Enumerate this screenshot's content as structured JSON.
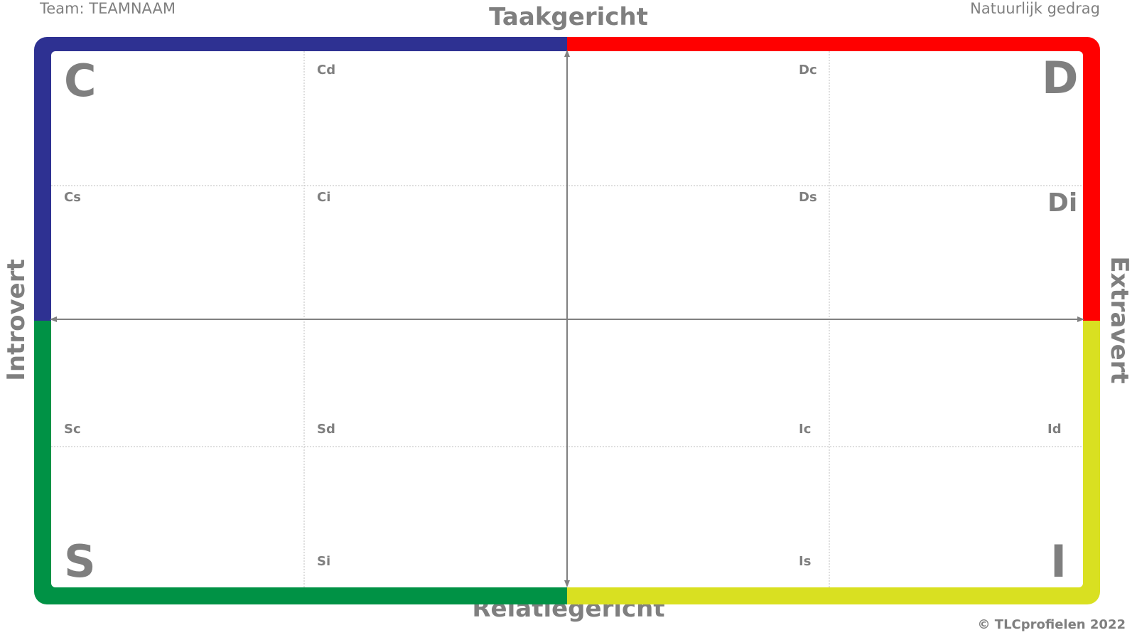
{
  "header": {
    "team_label": "Team: TEAMNAAM",
    "mode_label": "Natuurlijk gedrag"
  },
  "axes": {
    "top": "Taakgericht",
    "bottom": "Relatiegericht",
    "left": "Introvert",
    "right": "Extravert"
  },
  "quadrants": {
    "top_left": {
      "letter": "C",
      "color": "#2e3192"
    },
    "top_right": {
      "letter": "D",
      "color": "#ff0000"
    },
    "bottom_left": {
      "letter": "S",
      "color": "#009245"
    },
    "bottom_right": {
      "letter": "I",
      "color": "#d9e021"
    }
  },
  "cells": {
    "cd": "Cd",
    "dc": "Dc",
    "cs": "Cs",
    "ci": "Ci",
    "ds": "Ds",
    "di": "Di",
    "sc": "Sc",
    "sd": "Sd",
    "ic": "Ic",
    "id": "Id",
    "si": "Si",
    "is": "Is"
  },
  "footer": {
    "copyright": "© TLCprofielen 2022"
  },
  "style": {
    "text_color": "#7f7f7f",
    "grid_color": "#bfbfbf",
    "axis_color": "#808080"
  }
}
